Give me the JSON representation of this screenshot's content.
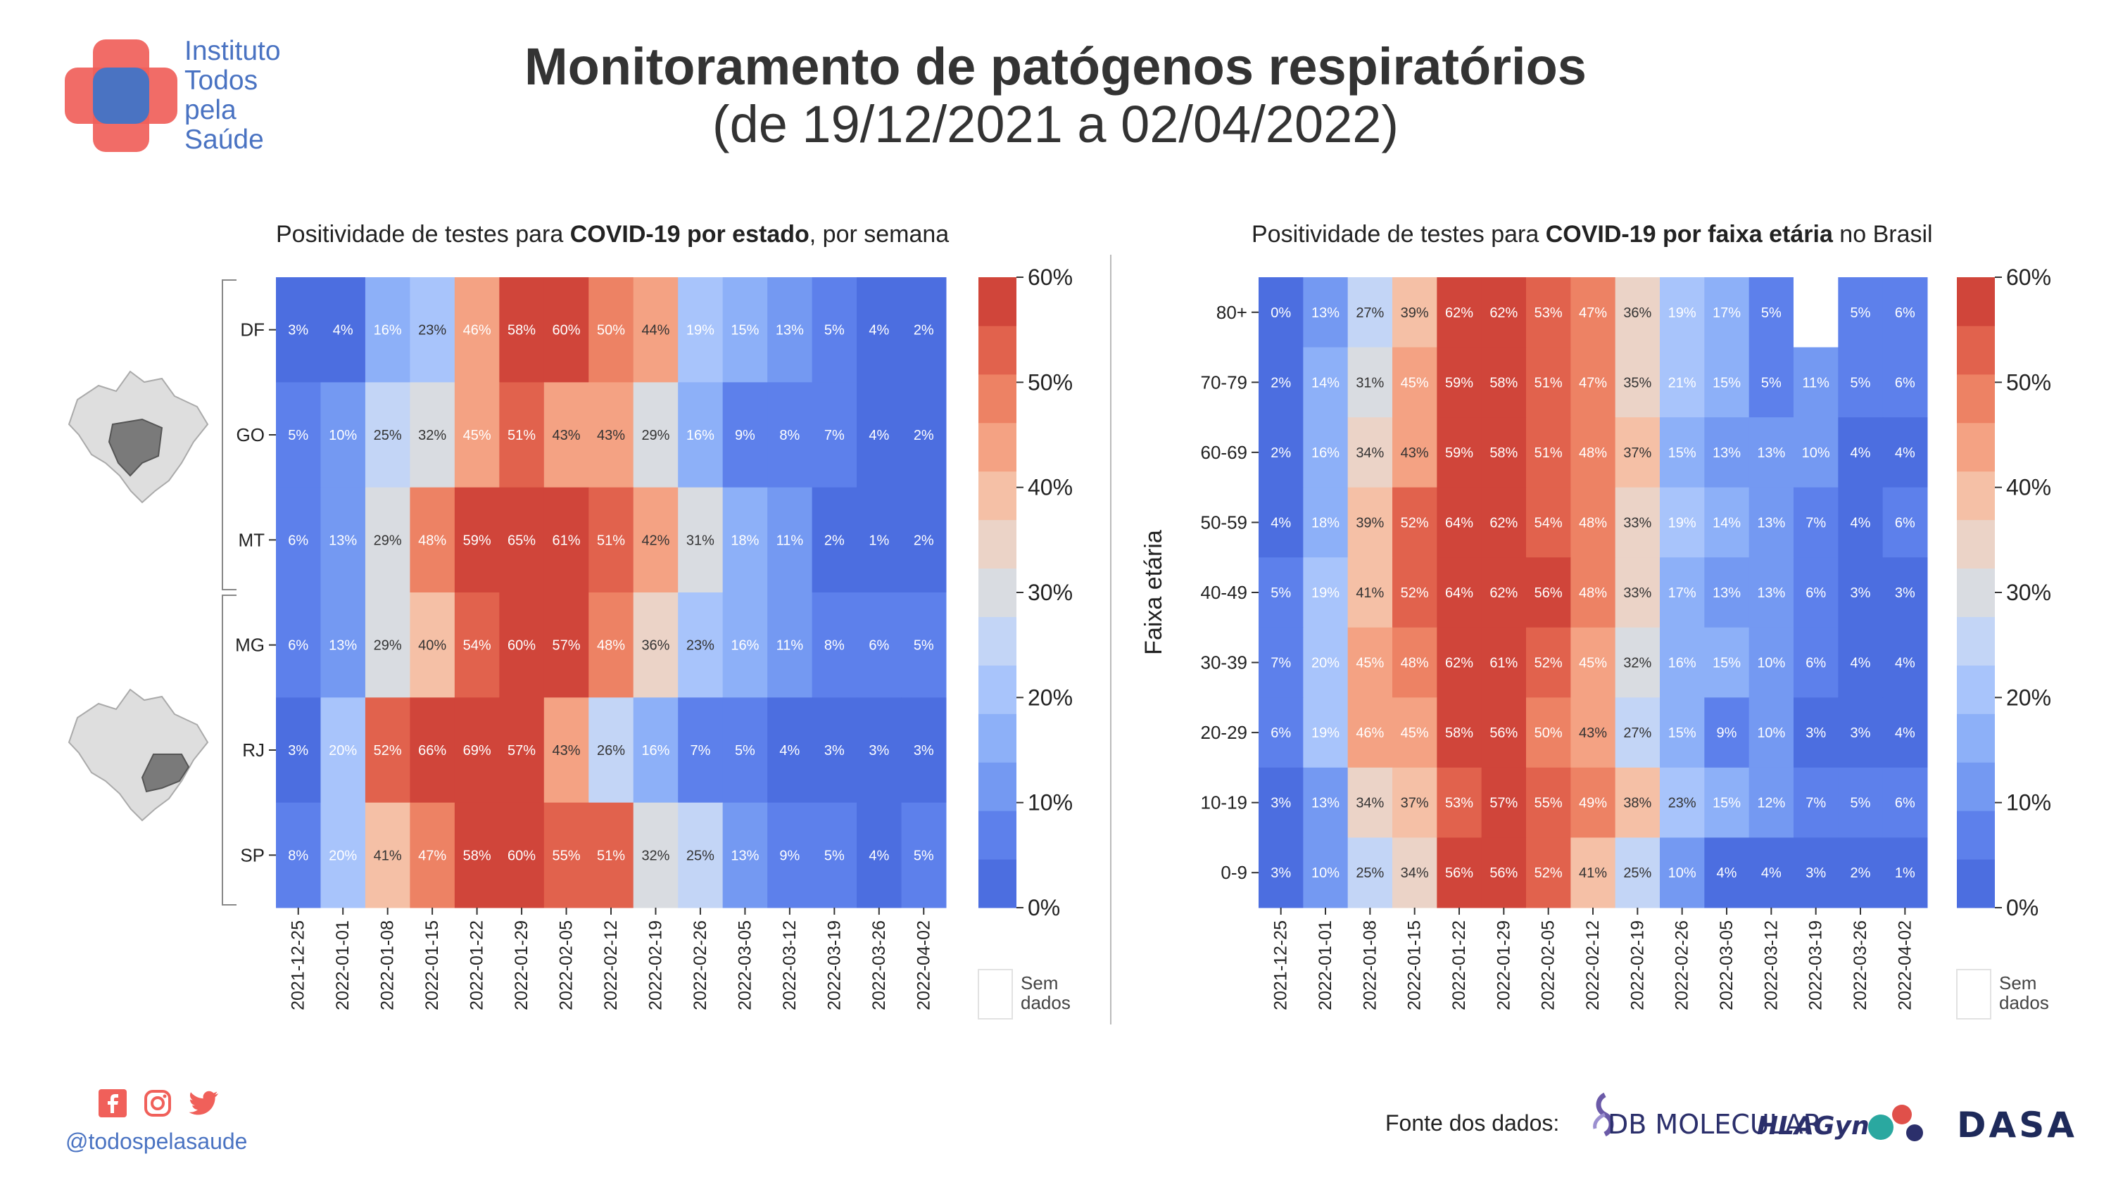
{
  "header": {
    "title": "Monitoramento de patógenos respiratórios",
    "subtitle": "(de 19/12/2021 a 02/04/2022)"
  },
  "logo": {
    "lines": [
      "Instituto",
      "Todos",
      "pela",
      "Saúde"
    ],
    "colors": {
      "red": "#f0605a",
      "blue": "#4a73c2"
    }
  },
  "footer": {
    "social_icons": [
      "facebook-icon",
      "instagram-icon",
      "twitter-icon"
    ],
    "handle": "@todospelasaude",
    "source_label": "Fonte dos dados:",
    "partners": [
      "DB MOLECULAR",
      "HLAGyn",
      "DASA"
    ]
  },
  "colorbar": {
    "ticks": [
      "60%",
      "50%",
      "40%",
      "30%",
      "20%",
      "10%",
      "0%"
    ],
    "no_data_label_1": "Sem",
    "no_data_label_2": "dados",
    "palette": [
      "#4c6ee0",
      "#5d80eb",
      "#7499f2",
      "#8db0f8",
      "#a8c4fb",
      "#c3d5f6",
      "#d9dce1",
      "#ebd3c7",
      "#f5c0a6",
      "#f4a283",
      "#ed8264",
      "#e1624d",
      "#d0453a"
    ]
  },
  "chart_data": [
    {
      "type": "heatmap",
      "title_prefix": "Positividade de testes para ",
      "title_bold": "COVID-19 por estado",
      "title_suffix": ", por semana",
      "x": [
        "2021-12-25",
        "2022-01-01",
        "2022-01-08",
        "2022-01-15",
        "2022-01-22",
        "2022-01-29",
        "2022-02-05",
        "2022-02-12",
        "2022-02-19",
        "2022-02-26",
        "2022-03-05",
        "2022-03-12",
        "2022-03-19",
        "2022-03-26",
        "2022-04-02"
      ],
      "y": [
        "DF",
        "GO",
        "MT",
        "MG",
        "RJ",
        "SP"
      ],
      "region_groups": [
        [
          "DF",
          "GO",
          "MT"
        ],
        [
          "MG",
          "RJ",
          "SP"
        ]
      ],
      "unit": "%",
      "zlim": [
        0,
        60
      ],
      "values": [
        [
          3,
          4,
          16,
          23,
          46,
          58,
          60,
          50,
          44,
          19,
          15,
          13,
          5,
          4,
          2
        ],
        [
          5,
          10,
          25,
          32,
          45,
          51,
          43,
          43,
          29,
          16,
          9,
          8,
          7,
          4,
          2
        ],
        [
          6,
          13,
          29,
          48,
          59,
          65,
          61,
          51,
          42,
          31,
          18,
          11,
          2,
          1,
          2
        ],
        [
          6,
          13,
          29,
          40,
          54,
          60,
          57,
          48,
          36,
          23,
          16,
          11,
          8,
          6,
          5
        ],
        [
          3,
          20,
          52,
          66,
          69,
          57,
          43,
          26,
          16,
          7,
          5,
          4,
          3,
          3,
          3
        ],
        [
          8,
          20,
          41,
          47,
          58,
          60,
          55,
          51,
          32,
          25,
          13,
          9,
          5,
          4,
          5
        ]
      ]
    },
    {
      "type": "heatmap",
      "title_prefix": "Positividade de testes para ",
      "title_bold": "COVID-19 por faixa etária",
      "title_suffix": " no Brasil",
      "ylabel": "Faixa etária",
      "x": [
        "2021-12-25",
        "2022-01-01",
        "2022-01-08",
        "2022-01-15",
        "2022-01-22",
        "2022-01-29",
        "2022-02-05",
        "2022-02-12",
        "2022-02-19",
        "2022-02-26",
        "2022-03-05",
        "2022-03-12",
        "2022-03-19",
        "2022-03-26",
        "2022-04-02"
      ],
      "y": [
        "80+",
        "70-79",
        "60-69",
        "50-59",
        "40-49",
        "30-39",
        "20-29",
        "10-19",
        "0-9"
      ],
      "unit": "%",
      "zlim": [
        0,
        60
      ],
      "values": [
        [
          0,
          13,
          27,
          39,
          62,
          62,
          53,
          47,
          36,
          19,
          17,
          5,
          null,
          5,
          6
        ],
        [
          2,
          14,
          31,
          45,
          59,
          58,
          51,
          47,
          35,
          21,
          15,
          5,
          11,
          5,
          6
        ],
        [
          2,
          16,
          34,
          43,
          59,
          58,
          51,
          48,
          37,
          15,
          13,
          13,
          10,
          4,
          4
        ],
        [
          4,
          18,
          39,
          52,
          64,
          62,
          54,
          48,
          33,
          19,
          14,
          13,
          7,
          4,
          6
        ],
        [
          5,
          19,
          41,
          52,
          64,
          62,
          56,
          48,
          33,
          17,
          13,
          13,
          6,
          3,
          3
        ],
        [
          7,
          20,
          45,
          48,
          62,
          61,
          52,
          45,
          32,
          16,
          15,
          10,
          6,
          4,
          4
        ],
        [
          6,
          19,
          46,
          45,
          58,
          56,
          50,
          43,
          27,
          15,
          9,
          10,
          3,
          3,
          4
        ],
        [
          3,
          13,
          34,
          37,
          53,
          57,
          55,
          49,
          38,
          23,
          15,
          12,
          7,
          5,
          6
        ],
        [
          3,
          10,
          25,
          34,
          56,
          56,
          52,
          41,
          25,
          10,
          4,
          4,
          3,
          2,
          1
        ]
      ]
    }
  ]
}
